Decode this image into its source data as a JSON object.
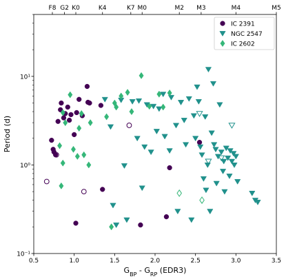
{
  "chart_data": {
    "type": "scatter",
    "title": "",
    "xlabel": "G_BP - G_RP (EDR3)",
    "ylabel": "Period (d)",
    "xlim": [
      0.5,
      3.5
    ],
    "ylim": [
      0.1,
      50
    ],
    "y_scale": "log",
    "x_ticks": [
      0.5,
      1.0,
      1.5,
      2.0,
      2.5,
      3.0,
      3.5
    ],
    "x_tick_labels": [
      "0.5",
      "1.0",
      "1.5",
      "2.0",
      "2.5",
      "3.0",
      "3.5"
    ],
    "y_ticks": [
      0.1,
      1,
      10
    ],
    "y_tick_labels": [
      "10⁻¹",
      "10⁰",
      "10¹"
    ],
    "top_axis": {
      "labels": [
        {
          "label": "F8",
          "x": 0.73
        },
        {
          "label": "G2",
          "x": 0.88
        },
        {
          "label": "K0",
          "x": 1.02
        },
        {
          "label": "K4",
          "x": 1.35
        },
        {
          "label": "K7",
          "x": 1.7
        },
        {
          "label": "M0",
          "x": 1.84
        },
        {
          "label": "M2",
          "x": 2.3
        },
        {
          "label": "M3",
          "x": 2.57
        },
        {
          "label": "M4",
          "x": 3.0
        },
        {
          "label": "M5",
          "x": 3.5
        }
      ]
    },
    "legend": {
      "placement": "top-right",
      "entries": [
        {
          "name": "IC 2391",
          "marker": "circle",
          "color": "#440154"
        },
        {
          "name": "NGC 2547",
          "marker": "triangle-down",
          "color": "#21918c"
        },
        {
          "name": "IC 2602",
          "marker": "diamond",
          "color": "#35b779"
        }
      ]
    },
    "series": [
      {
        "name": "IC 2391",
        "marker": "circle",
        "color": "#440154",
        "points": [
          {
            "x": 0.72,
            "y": 1.9
          },
          {
            "x": 0.74,
            "y": 1.5
          },
          {
            "x": 0.75,
            "y": 1.4
          },
          {
            "x": 0.77,
            "y": 1.3
          },
          {
            "x": 0.8,
            "y": 3.1
          },
          {
            "x": 0.83,
            "y": 4.2
          },
          {
            "x": 0.84,
            "y": 5.0
          },
          {
            "x": 0.87,
            "y": 3.4
          },
          {
            "x": 0.89,
            "y": 3.8
          },
          {
            "x": 0.92,
            "y": 4.5
          },
          {
            "x": 0.94,
            "y": 3.2
          },
          {
            "x": 0.96,
            "y": 3.7
          },
          {
            "x": 1.0,
            "y": 2.2
          },
          {
            "x": 1.03,
            "y": 3.9
          },
          {
            "x": 1.06,
            "y": 5.5
          },
          {
            "x": 1.1,
            "y": 3.6
          },
          {
            "x": 1.16,
            "y": 7.7
          },
          {
            "x": 1.17,
            "y": 5.1
          },
          {
            "x": 1.19,
            "y": 5.0
          },
          {
            "x": 1.33,
            "y": 4.7
          },
          {
            "x": 1.35,
            "y": 0.53
          },
          {
            "x": 1.02,
            "y": 0.22
          },
          {
            "x": 1.82,
            "y": 0.21
          },
          {
            "x": 2.14,
            "y": 0.26
          },
          {
            "x": 2.18,
            "y": 0.93
          },
          {
            "x": 2.55,
            "y": 1.8
          }
        ]
      },
      {
        "name": "IC 2391 (open)",
        "marker": "circle-open",
        "color": "#440154",
        "points": [
          {
            "x": 0.66,
            "y": 0.65
          },
          {
            "x": 0.78,
            "y": 1.3
          },
          {
            "x": 1.12,
            "y": 0.5
          },
          {
            "x": 1.68,
            "y": 2.8
          }
        ]
      },
      {
        "name": "NGC 2547",
        "marker": "triangle-down",
        "color": "#21918c",
        "points": [
          {
            "x": 1.38,
            "y": 5.5
          },
          {
            "x": 1.45,
            "y": 2.7
          },
          {
            "x": 1.48,
            "y": 0.35
          },
          {
            "x": 1.52,
            "y": 0.21
          },
          {
            "x": 1.58,
            "y": 5.4
          },
          {
            "x": 1.62,
            "y": 0.98
          },
          {
            "x": 1.65,
            "y": 0.24
          },
          {
            "x": 1.72,
            "y": 5.2
          },
          {
            "x": 1.78,
            "y": 2.0
          },
          {
            "x": 1.8,
            "y": 5.3
          },
          {
            "x": 1.84,
            "y": 0.55
          },
          {
            "x": 1.87,
            "y": 1.6
          },
          {
            "x": 1.9,
            "y": 4.8
          },
          {
            "x": 1.95,
            "y": 1.4
          },
          {
            "x": 1.98,
            "y": 4.6
          },
          {
            "x": 2.02,
            "y": 2.4
          },
          {
            "x": 2.05,
            "y": 4.3
          },
          {
            "x": 2.1,
            "y": 6.3
          },
          {
            "x": 2.12,
            "y": 2.1
          },
          {
            "x": 2.18,
            "y": 1.45
          },
          {
            "x": 2.2,
            "y": 5.8
          },
          {
            "x": 2.26,
            "y": 2.8
          },
          {
            "x": 2.28,
            "y": 0.3
          },
          {
            "x": 2.32,
            "y": 5.1
          },
          {
            "x": 2.36,
            "y": 3.2
          },
          {
            "x": 2.38,
            "y": 1.7
          },
          {
            "x": 2.42,
            "y": 5.6
          },
          {
            "x": 2.45,
            "y": 0.24
          },
          {
            "x": 2.48,
            "y": 3.6
          },
          {
            "x": 2.5,
            "y": 2.0
          },
          {
            "x": 2.52,
            "y": 7.6
          },
          {
            "x": 2.54,
            "y": 5.2
          },
          {
            "x": 2.56,
            "y": 1.6
          },
          {
            "x": 2.58,
            "y": 1.3
          },
          {
            "x": 2.6,
            "y": 0.7
          },
          {
            "x": 2.62,
            "y": 3.5
          },
          {
            "x": 2.63,
            "y": 0.52
          },
          {
            "x": 2.65,
            "y": 1.0
          },
          {
            "x": 2.66,
            "y": 12.0
          },
          {
            "x": 2.68,
            "y": 0.3
          },
          {
            "x": 2.7,
            "y": 2.3
          },
          {
            "x": 2.72,
            "y": 8.3
          },
          {
            "x": 2.73,
            "y": 1.7
          },
          {
            "x": 2.75,
            "y": 1.5
          },
          {
            "x": 2.76,
            "y": 0.62
          },
          {
            "x": 2.78,
            "y": 1.25
          },
          {
            "x": 2.8,
            "y": 4.8
          },
          {
            "x": 2.82,
            "y": 1.4
          },
          {
            "x": 2.84,
            "y": 0.85
          },
          {
            "x": 2.85,
            "y": 1.1
          },
          {
            "x": 2.86,
            "y": 0.5
          },
          {
            "x": 2.88,
            "y": 1.55
          },
          {
            "x": 2.9,
            "y": 1.2
          },
          {
            "x": 2.92,
            "y": 0.75
          },
          {
            "x": 2.93,
            "y": 1.45
          },
          {
            "x": 2.95,
            "y": 1.1
          },
          {
            "x": 2.97,
            "y": 1.35
          },
          {
            "x": 2.98,
            "y": 1.0
          },
          {
            "x": 3.0,
            "y": 1.25
          },
          {
            "x": 3.02,
            "y": 0.65
          },
          {
            "x": 3.2,
            "y": 0.48
          },
          {
            "x": 3.24,
            "y": 0.4
          },
          {
            "x": 3.27,
            "y": 0.38
          }
        ]
      },
      {
        "name": "NGC 2547 (open)",
        "marker": "triangle-down-open",
        "color": "#21918c",
        "points": [
          {
            "x": 2.55,
            "y": 3.8
          },
          {
            "x": 2.66,
            "y": 1.1
          },
          {
            "x": 2.82,
            "y": 1.2
          },
          {
            "x": 2.95,
            "y": 2.8
          }
        ]
      },
      {
        "name": "IC 2602",
        "marker": "diamond",
        "color": "#35b779",
        "points": [
          {
            "x": 0.82,
            "y": 1.65
          },
          {
            "x": 0.84,
            "y": 0.58
          },
          {
            "x": 0.86,
            "y": 1.05
          },
          {
            "x": 0.86,
            "y": 3.9
          },
          {
            "x": 0.89,
            "y": 3.0
          },
          {
            "x": 0.95,
            "y": 6.2
          },
          {
            "x": 0.99,
            "y": 1.5
          },
          {
            "x": 1.04,
            "y": 1.25
          },
          {
            "x": 1.06,
            "y": 2.6
          },
          {
            "x": 1.09,
            "y": 3.8
          },
          {
            "x": 1.12,
            "y": 1.3
          },
          {
            "x": 1.18,
            "y": 1.0
          },
          {
            "x": 1.2,
            "y": 3.0
          },
          {
            "x": 1.4,
            "y": 3.5
          },
          {
            "x": 1.46,
            "y": 0.2
          },
          {
            "x": 1.5,
            "y": 5.0
          },
          {
            "x": 1.52,
            "y": 4.5
          },
          {
            "x": 1.58,
            "y": 6.0
          },
          {
            "x": 1.66,
            "y": 6.6
          },
          {
            "x": 1.71,
            "y": 4.0
          },
          {
            "x": 1.83,
            "y": 10.2
          },
          {
            "x": 1.93,
            "y": 4.6
          },
          {
            "x": 2.05,
            "y": 6.3
          },
          {
            "x": 2.1,
            "y": 4.5
          },
          {
            "x": 2.18,
            "y": 6.5
          }
        ]
      },
      {
        "name": "IC 2602 (open)",
        "marker": "diamond-open",
        "color": "#35b779",
        "points": [
          {
            "x": 2.3,
            "y": 0.48
          },
          {
            "x": 2.58,
            "y": 0.4
          }
        ]
      }
    ]
  }
}
